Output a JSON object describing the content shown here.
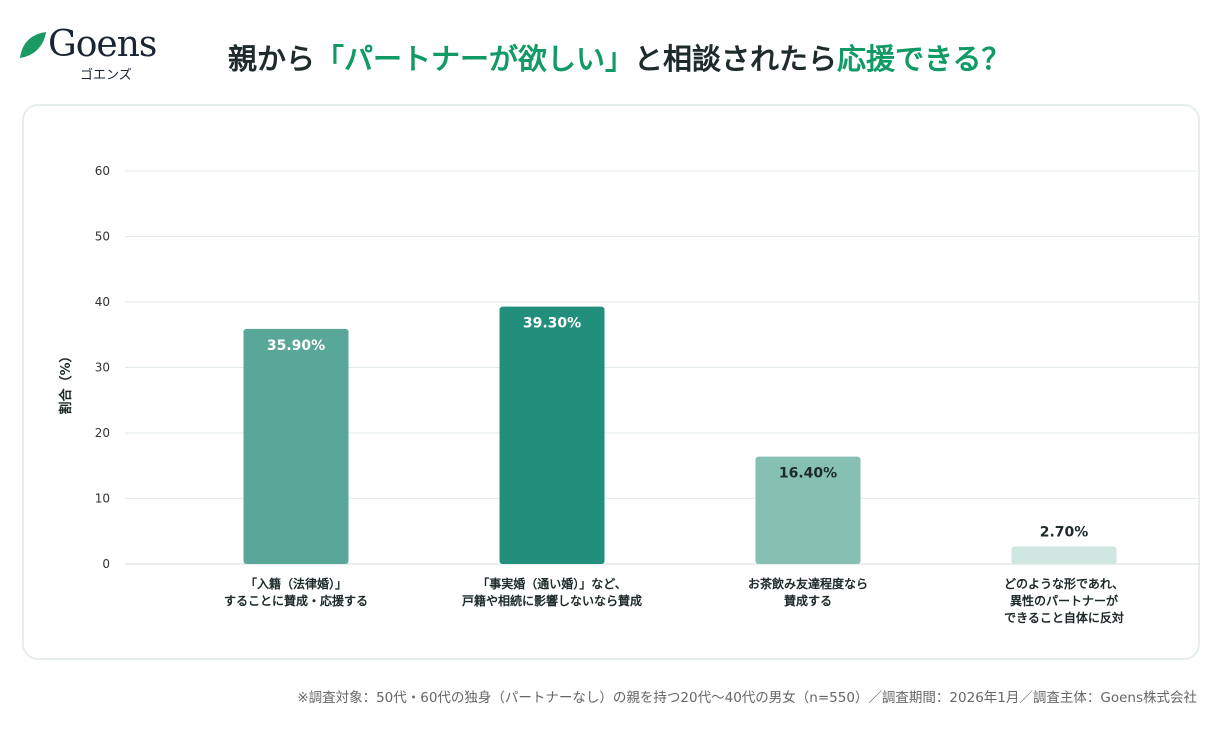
{
  "logo": {
    "word": "Goens",
    "kana": "ゴエンズ"
  },
  "title": {
    "prefix": "親から",
    "highlight1": "「パートナーが欲しい」",
    "middle": "と相談されたら",
    "highlight2": "応援できる？"
  },
  "colors": {
    "accent": "#119a63",
    "bars": [
      "#58a798",
      "#218f7b",
      "#85c0b3",
      "#d0e7e1"
    ],
    "grid": "#e3ecea"
  },
  "chart_data": {
    "type": "bar",
    "ylabel": "割合（%）",
    "ylim": [
      0,
      60
    ],
    "yticks": [
      0,
      10,
      20,
      30,
      40,
      50,
      60
    ],
    "grid": true,
    "categories": [
      [
        "「入籍（法律婚）」",
        "することに賛成・応援する"
      ],
      [
        "「事実婚（通い婚）」など、",
        "戸籍や相続に影響しないなら賛成"
      ],
      [
        "お茶飲み友達程度なら",
        "賛成する"
      ],
      [
        "どのような形であれ、",
        "異性のパートナーが",
        "できること自体に反対"
      ]
    ],
    "values": [
      35.9,
      39.3,
      16.4,
      2.7
    ],
    "data_labels": [
      "35.90%",
      "39.30%",
      "16.40%",
      "2.70%"
    ]
  },
  "footer": "※調査対象：50代・60代の独身（パートナーなし）の親を持つ20代〜40代の男女（n=550）／調査期間：2026年1月／調査主体：Goens株式会社"
}
